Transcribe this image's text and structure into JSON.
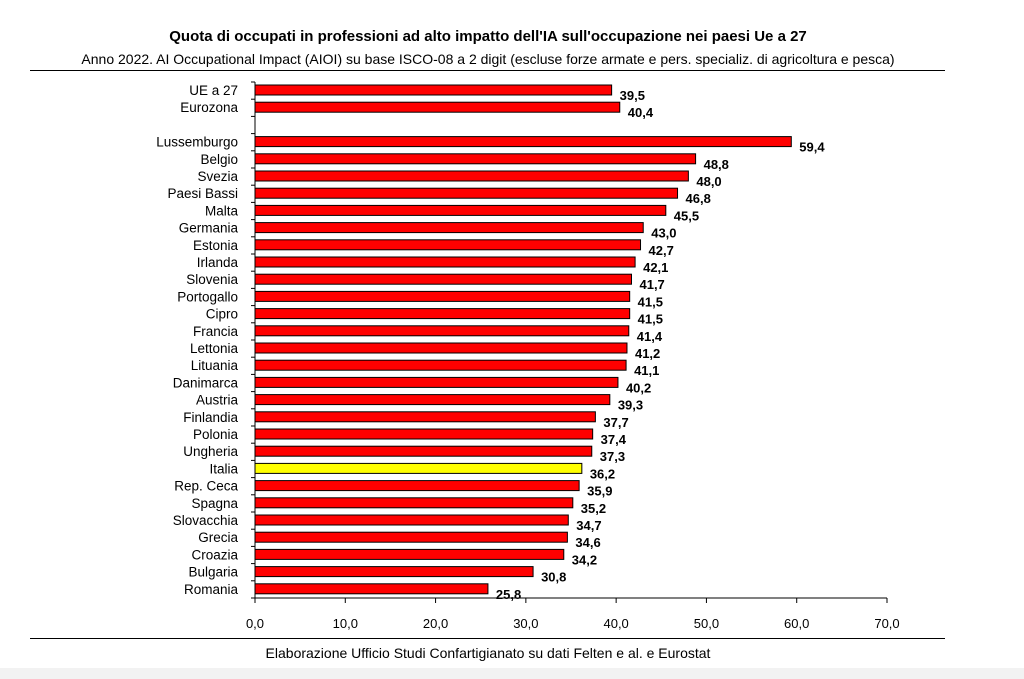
{
  "title": "Quota di occupati in professioni ad alto impatto dell'IA sull'occupazione nei paesi Ue a 27",
  "subtitle": "Anno 2022. AI Occupational Impact (AIOI) su base ISCO-08 a 2 digit (escluse forze armate e pers. specializ. di agricoltura e pesca)",
  "footer": "Elaborazione Ufficio Studi Confartigianato su dati Felten e al. e Eurostat",
  "colors": {
    "bar": "#ff0000",
    "highlight": "#ffff00",
    "outline": "#000000"
  },
  "chart_data": {
    "type": "bar",
    "orientation": "horizontal",
    "title": "Quota di occupati in professioni ad alto impatto dell'IA sull'occupazione nei paesi Ue a 27",
    "subtitle": "Anno 2022. AI Occupational Impact (AIOI) su base ISCO-08 a 2 digit (escluse forze armate e pers. specializ. di agricoltura e pesca)",
    "xlim": [
      0,
      70
    ],
    "x_ticks": [
      "0,0",
      "10,0",
      "20,0",
      "30,0",
      "40,0",
      "50,0",
      "60,0",
      "70,0"
    ],
    "grid": false,
    "legend": "none",
    "categories": [
      "UE a 27",
      "Eurozona",
      "Lussemburgo",
      "Belgio",
      "Svezia",
      "Paesi Bassi",
      "Malta",
      "Germania",
      "Estonia",
      "Irlanda",
      "Slovenia",
      "Portogallo",
      "Cipro",
      "Francia",
      "Lettonia",
      "Lituania",
      "Danimarca",
      "Austria",
      "Finlandia",
      "Polonia",
      "Ungheria",
      "Italia",
      "Rep. Ceca",
      "Spagna",
      "Slovacchia",
      "Grecia",
      "Croazia",
      "Bulgaria",
      "Romania"
    ],
    "values": [
      39.5,
      40.4,
      59.4,
      48.8,
      48.0,
      46.8,
      45.5,
      43.0,
      42.7,
      42.1,
      41.7,
      41.5,
      41.5,
      41.4,
      41.2,
      41.1,
      40.2,
      39.3,
      37.7,
      37.4,
      37.3,
      36.2,
      35.9,
      35.2,
      34.7,
      34.6,
      34.2,
      30.8,
      25.8
    ],
    "value_labels": [
      "39,5",
      "40,4",
      "59,4",
      "48,8",
      "48,0",
      "46,8",
      "45,5",
      "43,0",
      "42,7",
      "42,1",
      "41,7",
      "41,5",
      "41,5",
      "41,4",
      "41,2",
      "41,1",
      "40,2",
      "39,3",
      "37,7",
      "37,4",
      "37,3",
      "36,2",
      "35,9",
      "35,2",
      "34,7",
      "34,6",
      "34,2",
      "30,8",
      "25,8"
    ],
    "highlighted": [
      "Italia"
    ],
    "group_gap_after": "Eurozona"
  }
}
